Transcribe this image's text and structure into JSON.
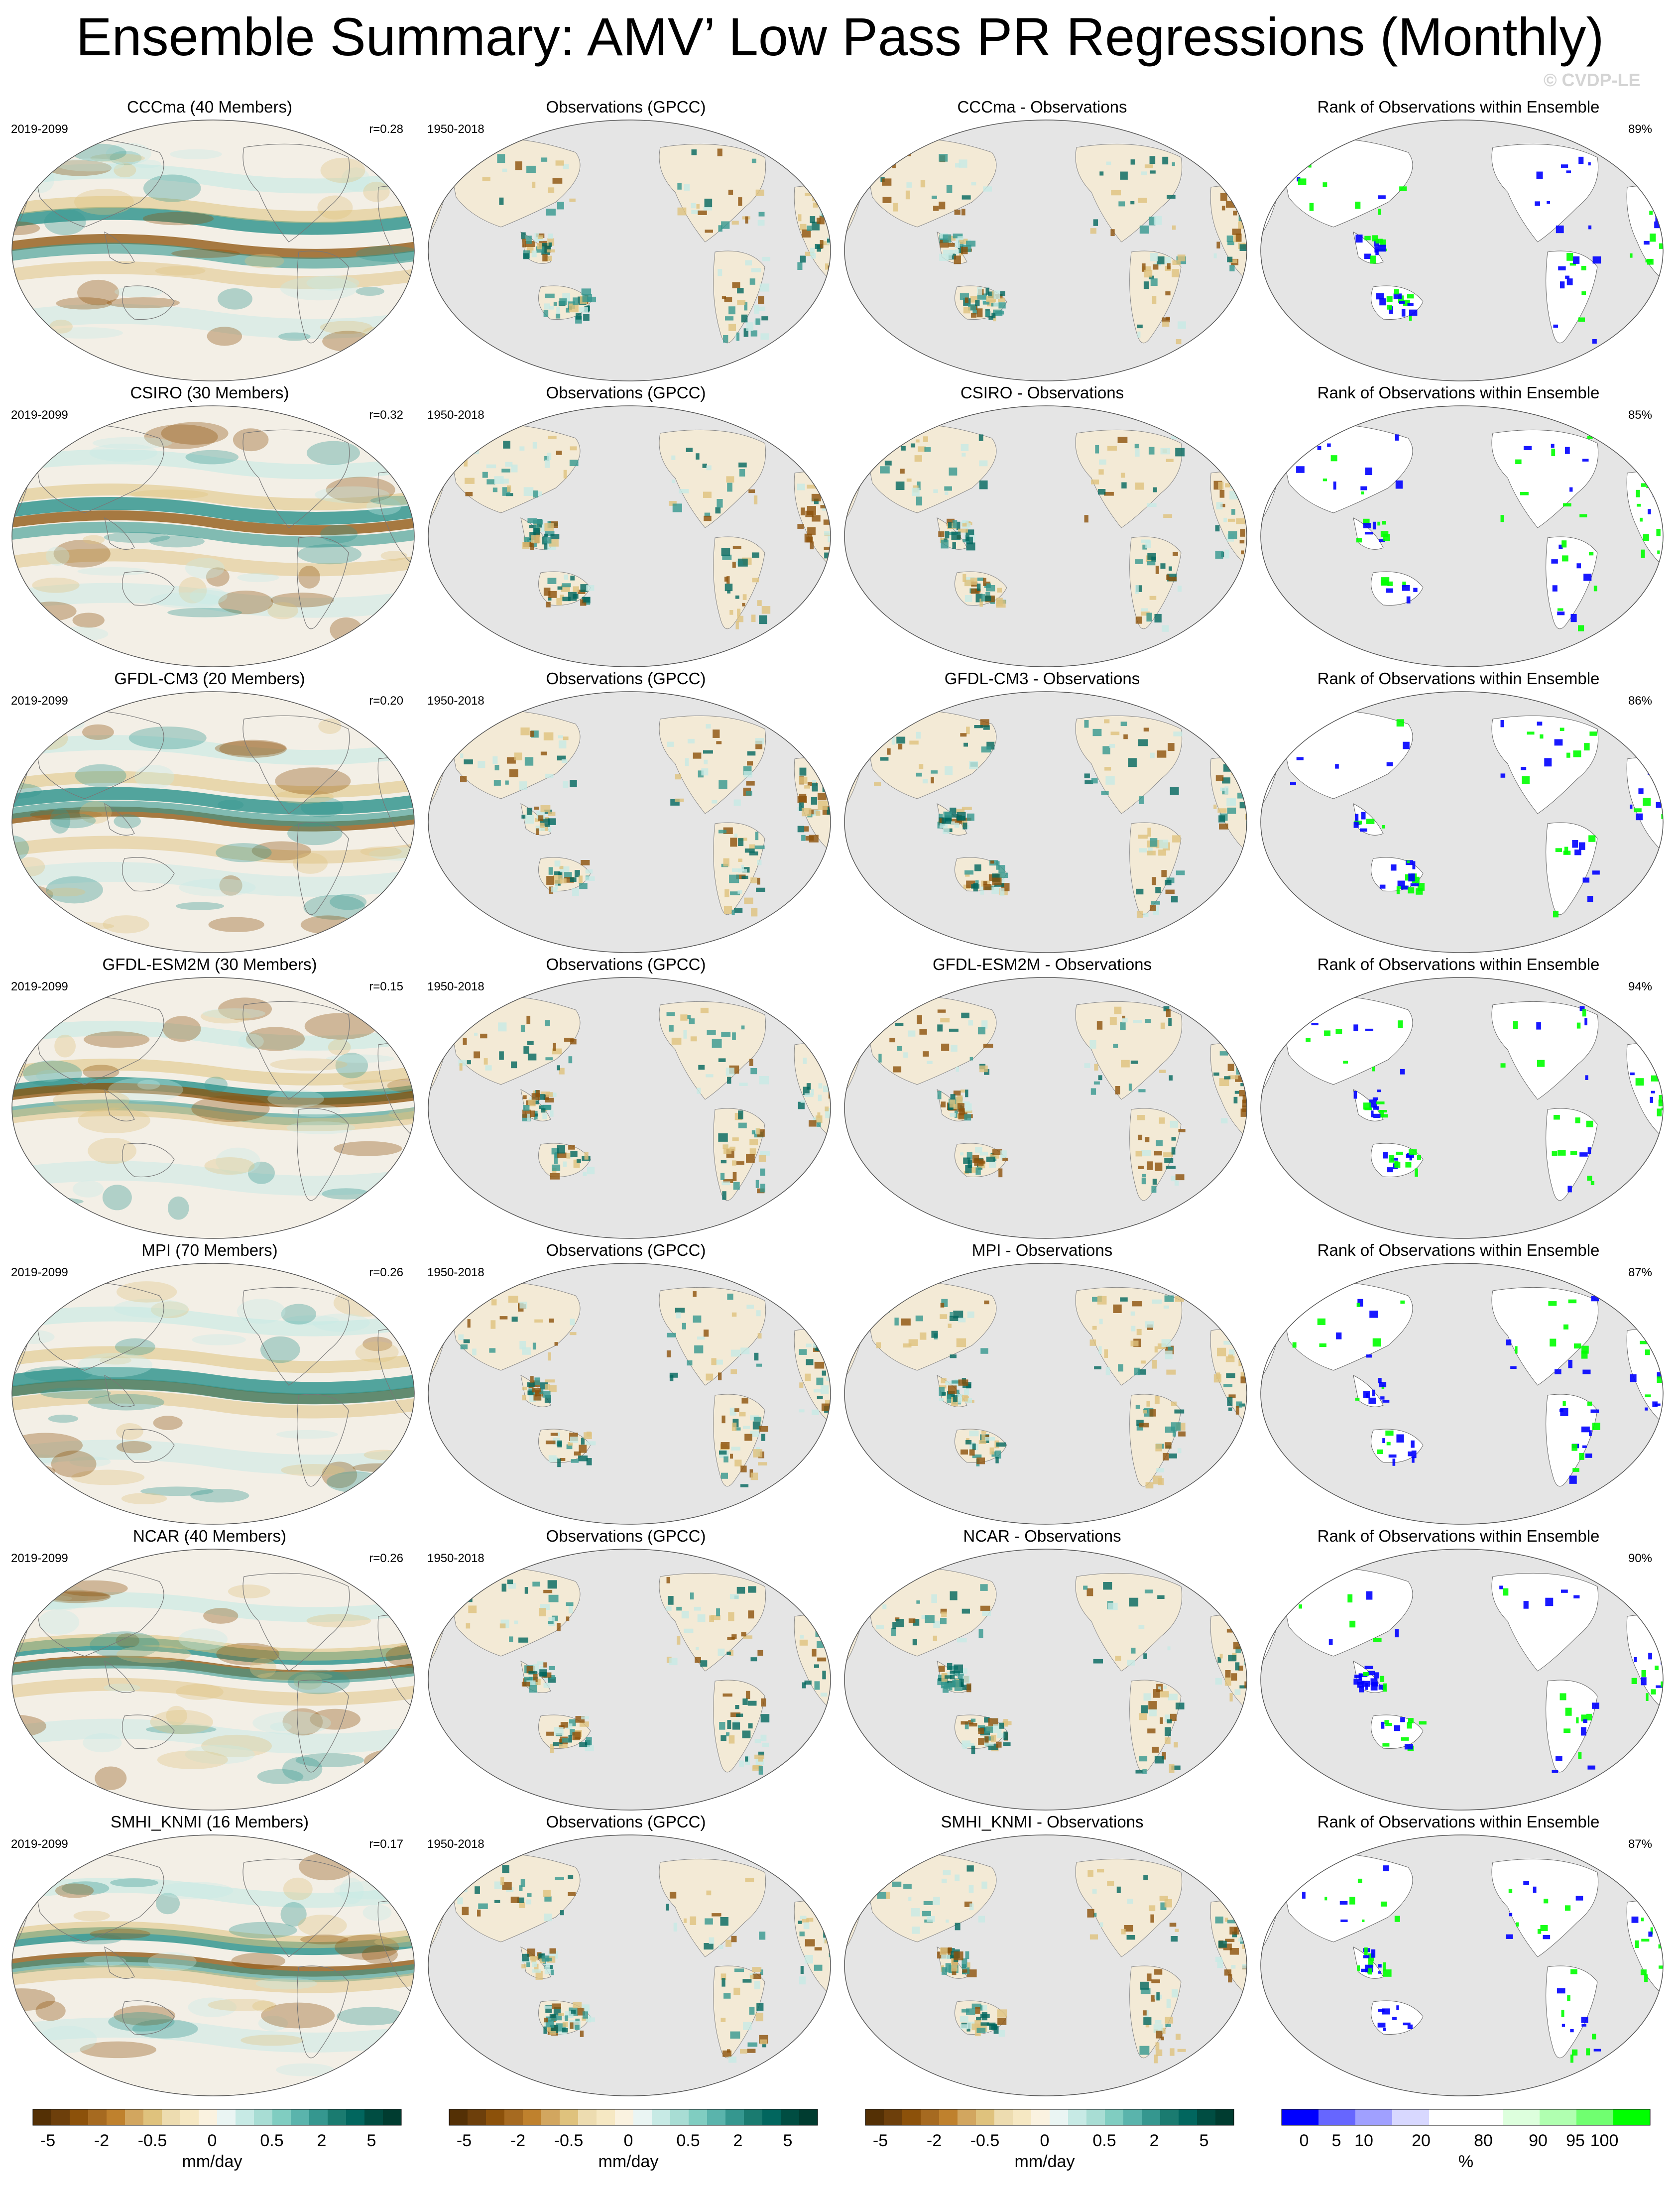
{
  "header": {
    "title": "Ensemble Summary: AMV’ Low Pass PR Regressions (Monthly)",
    "watermark": "© CVDP-LE"
  },
  "rows": [
    {
      "model_title": "CCCma (40 Members)",
      "model_period": "2019-2099",
      "model_r": "r=0.28",
      "obs_title": "Observations (GPCC)",
      "obs_period": "1950-2018",
      "diff_title": "CCCma - Observations",
      "rank_title": "Rank of Observations within Ensemble",
      "rank_pct": "89%"
    },
    {
      "model_title": "CSIRO (30 Members)",
      "model_period": "2019-2099",
      "model_r": "r=0.32",
      "obs_title": "Observations (GPCC)",
      "obs_period": "1950-2018",
      "diff_title": "CSIRO - Observations",
      "rank_title": "Rank of Observations within Ensemble",
      "rank_pct": "85%"
    },
    {
      "model_title": "GFDL-CM3 (20 Members)",
      "model_period": "2019-2099",
      "model_r": "r=0.20",
      "obs_title": "Observations (GPCC)",
      "obs_period": "1950-2018",
      "diff_title": "GFDL-CM3 - Observations",
      "rank_title": "Rank of Observations within Ensemble",
      "rank_pct": "86%"
    },
    {
      "model_title": "GFDL-ESM2M (30 Members)",
      "model_period": "2019-2099",
      "model_r": "r=0.15",
      "obs_title": "Observations (GPCC)",
      "obs_period": "1950-2018",
      "diff_title": "GFDL-ESM2M - Observations",
      "rank_title": "Rank of Observations within Ensemble",
      "rank_pct": "94%"
    },
    {
      "model_title": "MPI (70 Members)",
      "model_period": "2019-2099",
      "model_r": "r=0.26",
      "obs_title": "Observations (GPCC)",
      "obs_period": "1950-2018",
      "diff_title": "MPI - Observations",
      "rank_title": "Rank of Observations within Ensemble",
      "rank_pct": "87%"
    },
    {
      "model_title": "NCAR (40 Members)",
      "model_period": "2019-2099",
      "model_r": "r=0.26",
      "obs_title": "Observations (GPCC)",
      "obs_period": "1950-2018",
      "diff_title": "NCAR - Observations",
      "rank_title": "Rank of Observations within Ensemble",
      "rank_pct": "90%"
    },
    {
      "model_title": "SMHI_KNMI (16 Members)",
      "model_period": "2019-2099",
      "model_r": "r=0.17",
      "obs_title": "Observations (GPCC)",
      "obs_period": "1950-2018",
      "diff_title": "SMHI_KNMI - Observations",
      "rank_title": "Rank of Observations within Ensemble",
      "rank_pct": "87%"
    }
  ],
  "colorbars": {
    "precip": {
      "ticks": [
        "-5",
        "-2",
        "-0.5",
        "0",
        "0.5",
        "2",
        "5"
      ],
      "unit": "mm/day",
      "colors": [
        "#543005",
        "#6d3f0b",
        "#8c510a",
        "#a66a20",
        "#bf812d",
        "#d2a65f",
        "#dfc27d",
        "#eddcb0",
        "#f6e8c3",
        "#faf2e0",
        "#eaf5f3",
        "#c7eae5",
        "#a8ddd4",
        "#80cdc1",
        "#5ab4ac",
        "#35978f",
        "#1a7b70",
        "#01665e",
        "#004d42",
        "#003c30"
      ]
    },
    "rank": {
      "ticks": [
        "0",
        "5",
        "10",
        "20",
        "80",
        "90",
        "95",
        "100"
      ],
      "unit": "%",
      "colors": [
        "#0000ff",
        "#6666ff",
        "#a0a0ff",
        "#d8d8ff",
        "#ffffff",
        "#ffffff",
        "#ddffdd",
        "#b0ffb0",
        "#70ff70",
        "#00ff00"
      ]
    }
  },
  "map_colors": {
    "ocean_gray": "#e5e5e5",
    "teal": "#35978f",
    "dark_teal": "#01665e",
    "brown": "#8c510a",
    "tan": "#dfc27d",
    "blue": "#0000ff",
    "green": "#00ff00"
  }
}
